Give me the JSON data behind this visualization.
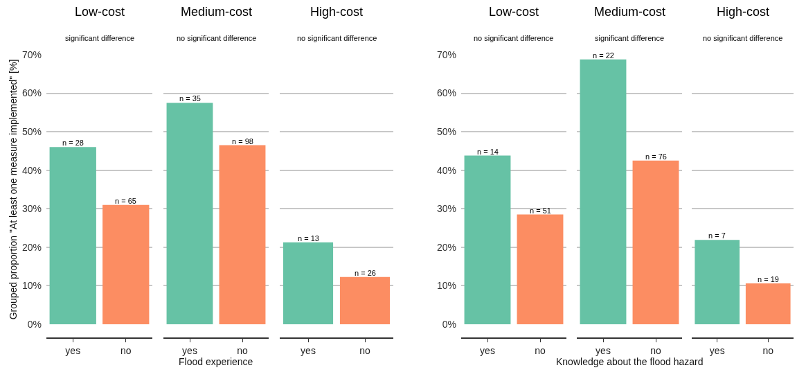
{
  "chart_data": [
    {
      "type": "bar",
      "title": "Low-cost",
      "subtitle": "significant difference",
      "ylabel": "Grouped proportion \"At least one measure implemented\" [%]",
      "categories": [
        "yes",
        "no"
      ],
      "values": [
        46,
        31
      ],
      "colors": [
        "#66c2a5",
        "#fc8d62"
      ],
      "annotations": [
        {
          "text": "n = 28",
          "x": "yes",
          "y": 46
        },
        {
          "text": "n = 65",
          "x": "no",
          "y": 31
        }
      ],
      "ylim": [
        0,
        70
      ],
      "yticks": [
        {
          "value": 0,
          "label": "0%"
        },
        {
          "value": 10,
          "label": "10%"
        },
        {
          "value": 20,
          "label": "20%"
        },
        {
          "value": 30,
          "label": "30%"
        },
        {
          "value": 40,
          "label": "40%"
        },
        {
          "value": 50,
          "label": "50%"
        },
        {
          "value": 60,
          "label": "60%"
        },
        {
          "value": 70,
          "label": "70%"
        }
      ],
      "grid": "y",
      "legend": false
    },
    {
      "type": "bar",
      "title": "Medium-cost",
      "subtitle": "no significant difference",
      "xlabel": "Flood experience",
      "categories": [
        "yes",
        "no"
      ],
      "values": [
        57.5,
        46.5
      ],
      "colors": [
        "#66c2a5",
        "#fc8d62"
      ],
      "annotations": [
        {
          "text": "n = 35",
          "x": "yes",
          "y": 57.5
        },
        {
          "text": "n = 98",
          "x": "no",
          "y": 46.5
        }
      ],
      "ylim": [
        0,
        70
      ],
      "yticks": [
        0,
        10,
        20,
        30,
        40,
        50,
        60,
        70
      ],
      "grid": "y",
      "legend": false,
      "tick_labels": "x"
    },
    {
      "type": "bar",
      "title": "High-cost",
      "subtitle": "no significant difference",
      "categories": [
        "yes",
        "no"
      ],
      "values": [
        21.3,
        12.3
      ],
      "colors": [
        "#66c2a5",
        "#fc8d62"
      ],
      "annotations": [
        {
          "text": "n = 13",
          "x": "yes",
          "y": 21.3
        },
        {
          "text": "n = 26",
          "x": "no",
          "y": 12.3
        }
      ],
      "ylim": [
        0,
        70
      ],
      "yticks": [
        0,
        10,
        20,
        30,
        40,
        50,
        60,
        70
      ],
      "grid": "y",
      "legend": false,
      "tick_labels": "x"
    },
    {
      "type": "bar",
      "title": "Low-cost",
      "subtitle": "no significant difference",
      "categories": [
        "yes",
        "no"
      ],
      "values": [
        43.8,
        28.5
      ],
      "colors": [
        "#66c2a5",
        "#fc8d62"
      ],
      "annotations": [
        {
          "text": "n = 14",
          "x": "yes",
          "y": 43.8
        },
        {
          "text": "n = 51",
          "x": "no",
          "y": 28.5
        }
      ],
      "ylim": [
        0,
        70
      ],
      "yticks": [
        {
          "value": 0,
          "label": "0%"
        },
        {
          "value": 10,
          "label": "10%"
        },
        {
          "value": 20,
          "label": "20%"
        },
        {
          "value": 30,
          "label": "30%"
        },
        {
          "value": 40,
          "label": "40%"
        },
        {
          "value": 50,
          "label": "50%"
        },
        {
          "value": 60,
          "label": "60%"
        },
        {
          "value": 70,
          "label": "70%"
        }
      ],
      "grid": "y",
      "legend": false
    },
    {
      "type": "bar",
      "title": "Medium-cost",
      "subtitle": "significant difference",
      "xlabel": "Knowledge about the flood hazard",
      "categories": [
        "yes",
        "no"
      ],
      "values": [
        68.8,
        42.5
      ],
      "colors": [
        "#66c2a5",
        "#fc8d62"
      ],
      "annotations": [
        {
          "text": "n = 22",
          "x": "yes",
          "y": 68.8
        },
        {
          "text": "n = 76",
          "x": "no",
          "y": 42.5
        }
      ],
      "ylim": [
        0,
        70
      ],
      "yticks": [
        0,
        10,
        20,
        30,
        40,
        50,
        60,
        70
      ],
      "grid": "y",
      "legend": false,
      "tick_labels": "x"
    },
    {
      "type": "bar",
      "title": "High-cost",
      "subtitle": "no significant difference",
      "categories": [
        "yes",
        "no"
      ],
      "values": [
        21.9,
        10.6
      ],
      "colors": [
        "#66c2a5",
        "#fc8d62"
      ],
      "annotations": [
        {
          "text": "n = 7",
          "x": "yes",
          "y": 21.9
        },
        {
          "text": "n = 19",
          "x": "no",
          "y": 10.6
        }
      ],
      "ylim": [
        0,
        70
      ],
      "yticks": [
        0,
        10,
        20,
        30,
        40,
        50,
        60,
        70
      ],
      "grid": "y",
      "legend": false,
      "tick_labels": "x"
    }
  ]
}
